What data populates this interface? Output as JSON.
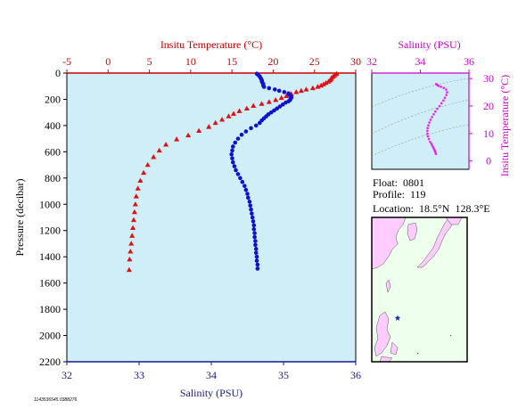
{
  "chart_data": [
    {
      "type": "scatter",
      "top_axis_title": "Insitu Temperature (",
      "top_axis_unit": "C)",
      "bottom_axis_title": "Salinity (PSU)",
      "left_axis_title": "Pressure (decibar)",
      "temperature_ticks": [
        "-5",
        "0",
        "5",
        "10",
        "15",
        "20",
        "25",
        "30"
      ],
      "salinity_ticks": [
        "32",
        "33",
        "34",
        "35",
        "36"
      ],
      "pressure_ticks": [
        "0",
        "200",
        "400",
        "600",
        "800",
        "1000",
        "1200",
        "1400",
        "1600",
        "1800",
        "2000",
        "2200"
      ],
      "xlim_temperature": [
        -5,
        30
      ],
      "xlim_salinity": [
        32,
        36
      ],
      "ylim_pressure": [
        0,
        2200
      ],
      "colors": {
        "temperature": "#e01010",
        "salinity": "#1010d0",
        "plot_bg": "#cfeef8",
        "axis_red": "#cc0000",
        "axis_blue": "#1a1a8c"
      },
      "series": [
        {
          "variable": "temperature",
          "marker": "triangle",
          "points": [
            [
              27.7,
              5
            ],
            [
              27.5,
              15
            ],
            [
              27.3,
              25
            ],
            [
              27.1,
              35
            ],
            [
              27.0,
              45
            ],
            [
              26.9,
              55
            ],
            [
              26.7,
              65
            ],
            [
              26.4,
              75
            ],
            [
              26.1,
              85
            ],
            [
              25.8,
              95
            ],
            [
              25.4,
              105
            ],
            [
              24.8,
              115
            ],
            [
              24.0,
              125
            ],
            [
              23.4,
              135
            ],
            [
              22.8,
              145
            ],
            [
              22.2,
              160
            ],
            [
              21.6,
              175
            ],
            [
              21.0,
              190
            ],
            [
              20.3,
              205
            ],
            [
              19.5,
              220
            ],
            [
              18.6,
              235
            ],
            [
              17.6,
              250
            ],
            [
              16.8,
              270
            ],
            [
              15.9,
              290
            ],
            [
              15.2,
              310
            ],
            [
              14.6,
              330
            ],
            [
              13.8,
              355
            ],
            [
              13.0,
              380
            ],
            [
              12.2,
              410
            ],
            [
              11.0,
              440
            ],
            [
              9.7,
              475
            ],
            [
              8.3,
              505
            ],
            [
              7.0,
              545
            ],
            [
              6.2,
              590
            ],
            [
              5.5,
              640
            ],
            [
              4.8,
              700
            ],
            [
              4.3,
              760
            ],
            [
              3.9,
              820
            ],
            [
              3.6,
              880
            ],
            [
              3.4,
              940
            ],
            [
              3.3,
              1000
            ],
            [
              3.2,
              1060
            ],
            [
              3.1,
              1120
            ],
            [
              3.0,
              1180
            ],
            [
              2.9,
              1240
            ],
            [
              2.8,
              1300
            ],
            [
              2.7,
              1360
            ],
            [
              2.6,
              1420
            ],
            [
              2.55,
              1500
            ]
          ]
        },
        {
          "variable": "salinity",
          "marker": "circle",
          "points": [
            [
              34.63,
              5
            ],
            [
              34.65,
              15
            ],
            [
              34.67,
              25
            ],
            [
              34.68,
              35
            ],
            [
              34.69,
              45
            ],
            [
              34.7,
              55
            ],
            [
              34.7,
              65
            ],
            [
              34.71,
              75
            ],
            [
              34.72,
              85
            ],
            [
              34.72,
              95
            ],
            [
              34.73,
              105
            ],
            [
              34.8,
              115
            ],
            [
              34.88,
              125
            ],
            [
              34.94,
              135
            ],
            [
              35.01,
              145
            ],
            [
              35.07,
              155
            ],
            [
              35.08,
              165
            ],
            [
              35.1,
              175
            ],
            [
              35.11,
              185
            ],
            [
              35.1,
              195
            ],
            [
              35.09,
              205
            ],
            [
              35.07,
              215
            ],
            [
              35.03,
              225
            ],
            [
              34.99,
              240
            ],
            [
              34.95,
              255
            ],
            [
              34.91,
              270
            ],
            [
              34.87,
              285
            ],
            [
              34.83,
              300
            ],
            [
              34.79,
              315
            ],
            [
              34.76,
              330
            ],
            [
              34.73,
              345
            ],
            [
              34.7,
              360
            ],
            [
              34.67,
              380
            ],
            [
              34.62,
              400
            ],
            [
              34.55,
              420
            ],
            [
              34.48,
              445
            ],
            [
              34.42,
              470
            ],
            [
              34.37,
              500
            ],
            [
              34.33,
              530
            ],
            [
              34.3,
              560
            ],
            [
              34.29,
              590
            ],
            [
              34.28,
              620
            ],
            [
              34.29,
              650
            ],
            [
              34.3,
              680
            ],
            [
              34.32,
              710
            ],
            [
              34.34,
              740
            ],
            [
              34.37,
              770
            ],
            [
              34.4,
              800
            ],
            [
              34.43,
              830
            ],
            [
              34.46,
              860
            ],
            [
              34.48,
              890
            ],
            [
              34.5,
              920
            ],
            [
              34.51,
              950
            ],
            [
              34.53,
              980
            ],
            [
              34.54,
              1010
            ],
            [
              34.55,
              1040
            ],
            [
              34.56,
              1070
            ],
            [
              34.57,
              1100
            ],
            [
              34.58,
              1130
            ],
            [
              34.59,
              1160
            ],
            [
              34.59,
              1190
            ],
            [
              34.6,
              1220
            ],
            [
              34.6,
              1250
            ],
            [
              34.61,
              1280
            ],
            [
              34.61,
              1310
            ],
            [
              34.62,
              1340
            ],
            [
              34.62,
              1370
            ],
            [
              34.63,
              1400
            ],
            [
              34.63,
              1430
            ],
            [
              34.64,
              1460
            ],
            [
              34.64,
              1490
            ]
          ]
        }
      ]
    },
    {
      "type": "scatter",
      "top_axis_title": "Salinity (PSU)",
      "right_axis_title": "Insitu Temperature (",
      "right_axis_unit": "C)",
      "salinity_ticks": [
        "32",
        "34",
        "36"
      ],
      "temperature_ticks": [
        "0",
        "10",
        "20",
        "30"
      ],
      "xlim_salinity": [
        32,
        36
      ],
      "ylim_temperature": [
        -3,
        32
      ],
      "colors": {
        "points": "#ee22ee",
        "axis": "#cc00cc",
        "contour": "#999999",
        "plot_bg": "#cfeef8"
      },
      "points": [
        [
          34.64,
          2.6
        ],
        [
          34.63,
          3.0
        ],
        [
          34.61,
          3.4
        ],
        [
          34.59,
          3.9
        ],
        [
          34.56,
          4.4
        ],
        [
          34.53,
          5.0
        ],
        [
          34.49,
          5.6
        ],
        [
          34.45,
          6.3
        ],
        [
          34.4,
          7.0
        ],
        [
          34.35,
          8.0
        ],
        [
          34.31,
          9.0
        ],
        [
          34.29,
          10.0
        ],
        [
          34.29,
          11.0
        ],
        [
          34.3,
          12.0
        ],
        [
          34.33,
          13.0
        ],
        [
          34.37,
          14.0
        ],
        [
          34.42,
          15.0
        ],
        [
          34.48,
          16.0
        ],
        [
          34.55,
          17.0
        ],
        [
          34.62,
          18.0
        ],
        [
          34.7,
          19.0
        ],
        [
          34.79,
          20.0
        ],
        [
          34.87,
          21.0
        ],
        [
          34.95,
          22.0
        ],
        [
          35.01,
          23.0
        ],
        [
          35.07,
          24.0
        ],
        [
          35.1,
          25.0
        ],
        [
          35.06,
          26.0
        ],
        [
          34.96,
          26.6
        ],
        [
          34.85,
          27.0
        ],
        [
          34.76,
          27.3
        ],
        [
          34.71,
          27.6
        ],
        [
          34.68,
          27.8
        ],
        [
          34.65,
          28.0
        ]
      ]
    }
  ],
  "info": {
    "float_label": "Float:",
    "float_value": "0801",
    "profile_label": "Profile:",
    "profile_value": "119",
    "location_label": "Location:",
    "lat": "18.5",
    "lat_hemi": "N",
    "lon": "128.3",
    "lon_hemi": "E"
  },
  "map": {
    "colors": {
      "sea": "#eeffee",
      "land": "#ffccff",
      "star": "#2222aa",
      "frame": "#000000"
    },
    "marker_icon": "star-icon"
  },
  "footnote": "1143536545.0388276"
}
